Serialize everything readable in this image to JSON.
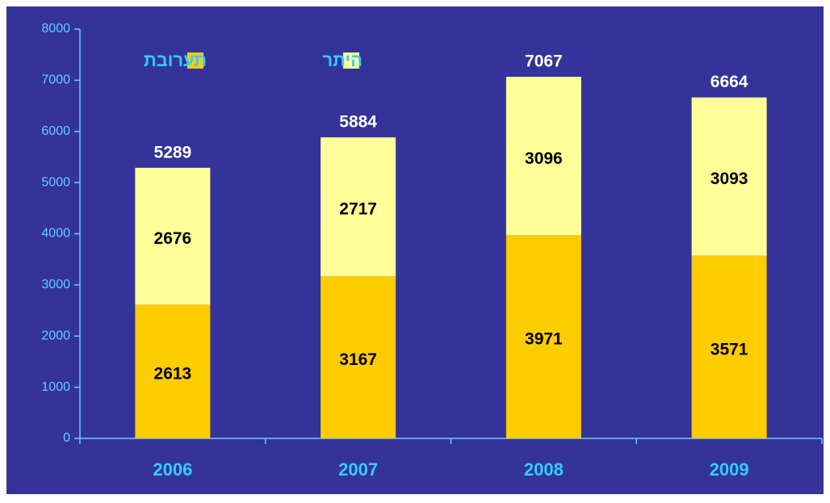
{
  "chart_data": {
    "type": "stacked_bar",
    "categories": [
      "2006",
      "2007",
      "2008",
      "2009"
    ],
    "series": [
      {
        "name": "תערובת",
        "color": "#ffcc00",
        "values": [
          2613,
          3167,
          3971,
          3571
        ]
      },
      {
        "name": "היתר",
        "color": "#ffff99",
        "values": [
          2676,
          2717,
          3096,
          3093
        ]
      }
    ],
    "totals": [
      5289,
      5884,
      7067,
      6664
    ],
    "ylim": [
      0,
      8000
    ],
    "yticks": [
      0,
      1000,
      2000,
      3000,
      4000,
      5000,
      6000,
      7000,
      8000
    ]
  }
}
